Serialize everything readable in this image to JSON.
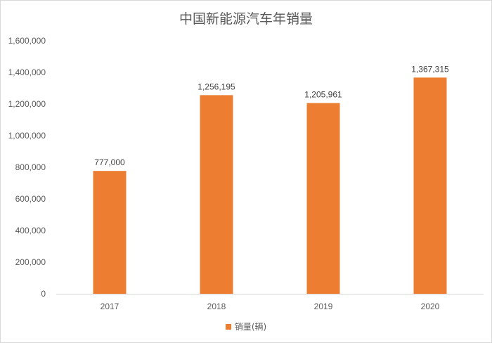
{
  "chart_data": {
    "type": "bar",
    "title": "中国新能源汽车年销量",
    "categories": [
      "2017",
      "2018",
      "2019",
      "2020"
    ],
    "series": [
      {
        "name": "销量(辆)",
        "values": [
          777000,
          1256195,
          1205961,
          1367315
        ],
        "data_labels": [
          "777,000",
          "1,256,195",
          "1,205,961",
          "1,367,315"
        ],
        "color": "#ed7d31"
      }
    ],
    "ylim": [
      0,
      1600000
    ],
    "y_ticks": [
      "0",
      "200,000",
      "400,000",
      "600,000",
      "800,000",
      "1,000,000",
      "1,200,000",
      "1,400,000",
      "1,600,000"
    ],
    "xlabel": "",
    "ylabel": "",
    "grid": false,
    "legend_position": "bottom"
  }
}
